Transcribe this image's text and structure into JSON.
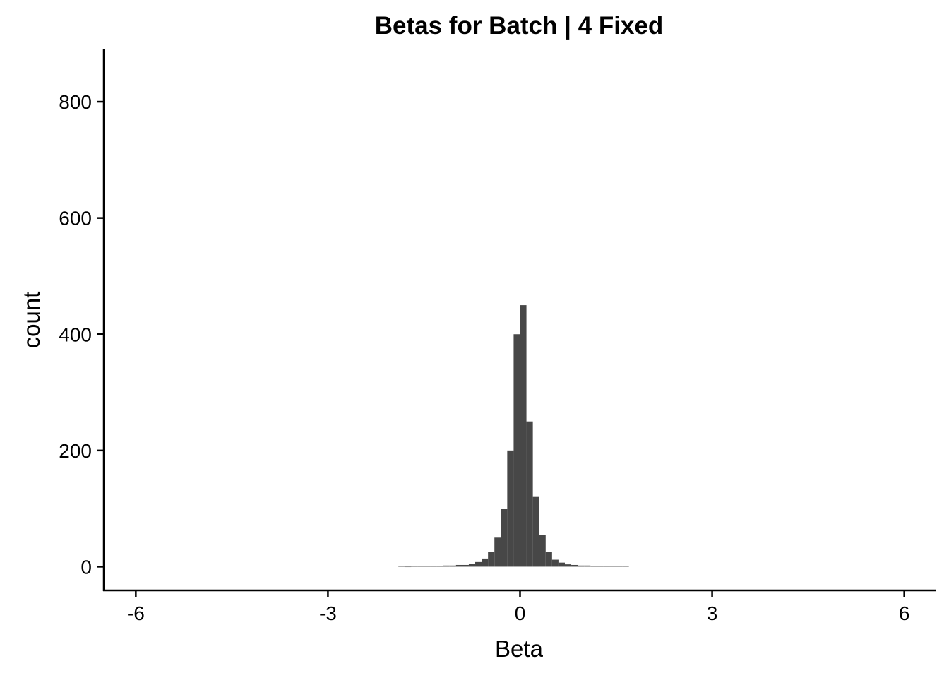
{
  "chart_data": {
    "type": "bar",
    "title": "Betas for Batch | 4 Fixed",
    "xlabel": "Beta",
    "ylabel": "count",
    "xlim": [
      -6.5,
      6.5
    ],
    "ylim": [
      -42,
      890
    ],
    "x_ticks": [
      -6,
      -3,
      0,
      3,
      6
    ],
    "x_tick_labels": [
      "-6",
      "-3",
      "0",
      "3",
      "6"
    ],
    "y_ticks": [
      0,
      200,
      400,
      600,
      800
    ],
    "y_tick_labels": [
      "0",
      "200",
      "400",
      "600",
      "800"
    ],
    "grid": false,
    "legend": "none",
    "bar_color": "#474747",
    "bin_width": 0.1,
    "series": [
      {
        "x": [
          -1.85,
          -1.75,
          -1.65,
          -1.55,
          -1.45,
          -1.35,
          -1.25,
          -1.15,
          -1.05,
          -0.95,
          -0.85,
          -0.75,
          -0.65,
          -0.55,
          -0.45,
          -0.35,
          -0.25,
          -0.15,
          -0.05,
          0.05,
          0.15,
          0.25,
          0.35,
          0.45,
          0.55,
          0.65,
          0.75,
          0.85,
          0.95,
          1.05,
          1.15,
          1.25,
          1.35,
          1.45,
          1.55,
          1.65
        ],
        "values": [
          1,
          0,
          1,
          1,
          1,
          1,
          1,
          2,
          2,
          3,
          3,
          5,
          8,
          14,
          25,
          50,
          100,
          200,
          400,
          450,
          250,
          120,
          55,
          25,
          12,
          7,
          4,
          3,
          2,
          2,
          1,
          1,
          1,
          1,
          1,
          1
        ]
      }
    ]
  }
}
